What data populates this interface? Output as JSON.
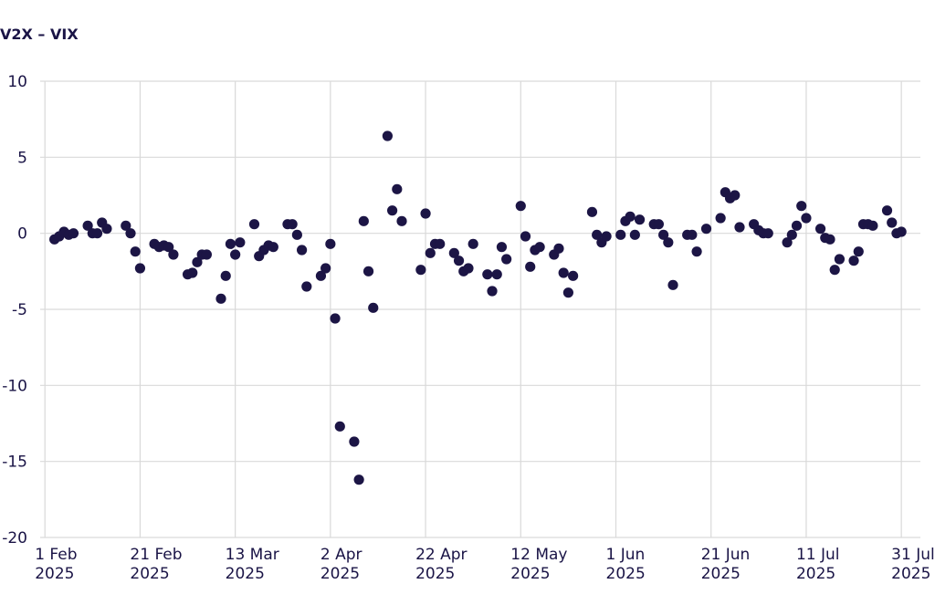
{
  "chart_data": {
    "type": "scatter",
    "title": "V2X – VIX",
    "xlabel": "",
    "ylabel": "",
    "ylim": [
      -20,
      10
    ],
    "xlim": [
      "2025-01-31",
      "2025-08-04"
    ],
    "grid": true,
    "y_ticks": [
      10,
      5,
      0,
      -5,
      -10,
      -15,
      -20
    ],
    "y_tick_labels": [
      "10",
      "5",
      "0",
      "-5",
      "-10",
      "-15",
      "-20"
    ],
    "x_ticks": [
      {
        "date": "2025-02-01",
        "line1": "1 Feb",
        "line2": "2025"
      },
      {
        "date": "2025-02-21",
        "line1": "21 Feb",
        "line2": "2025"
      },
      {
        "date": "2025-03-13",
        "line1": "13 Mar",
        "line2": "2025"
      },
      {
        "date": "2025-04-02",
        "line1": "2 Apr",
        "line2": "2025"
      },
      {
        "date": "2025-04-22",
        "line1": "22 Apr",
        "line2": "2025"
      },
      {
        "date": "2025-05-12",
        "line1": "12 May",
        "line2": "2025"
      },
      {
        "date": "2025-06-01",
        "line1": "1 Jun",
        "line2": "2025"
      },
      {
        "date": "2025-06-21",
        "line1": "21 Jun",
        "line2": "2025"
      },
      {
        "date": "2025-07-11",
        "line1": "11 Jul",
        "line2": "2025"
      },
      {
        "date": "2025-07-31",
        "line1": "31 Jul",
        "line2": "2025"
      }
    ],
    "marker_color": "#1c1545",
    "grid_color": "#d9d9d9",
    "points": [
      {
        "x": "2025-02-03",
        "y": -0.4
      },
      {
        "x": "2025-02-04",
        "y": -0.2
      },
      {
        "x": "2025-02-05",
        "y": 0.1
      },
      {
        "x": "2025-02-06",
        "y": -0.1
      },
      {
        "x": "2025-02-07",
        "y": 0.0
      },
      {
        "x": "2025-02-10",
        "y": 0.5
      },
      {
        "x": "2025-02-11",
        "y": 0.0
      },
      {
        "x": "2025-02-12",
        "y": 0.0
      },
      {
        "x": "2025-02-13",
        "y": 0.7
      },
      {
        "x": "2025-02-14",
        "y": 0.3
      },
      {
        "x": "2025-02-18",
        "y": 0.5
      },
      {
        "x": "2025-02-19",
        "y": 0.0
      },
      {
        "x": "2025-02-20",
        "y": -1.2
      },
      {
        "x": "2025-02-21",
        "y": -2.3
      },
      {
        "x": "2025-02-24",
        "y": -0.7
      },
      {
        "x": "2025-02-25",
        "y": -0.9
      },
      {
        "x": "2025-02-26",
        "y": -0.8
      },
      {
        "x": "2025-02-27",
        "y": -0.9
      },
      {
        "x": "2025-02-28",
        "y": -1.4
      },
      {
        "x": "2025-03-03",
        "y": -2.7
      },
      {
        "x": "2025-03-04",
        "y": -2.6
      },
      {
        "x": "2025-03-05",
        "y": -1.9
      },
      {
        "x": "2025-03-06",
        "y": -1.4
      },
      {
        "x": "2025-03-07",
        "y": -1.4
      },
      {
        "x": "2025-03-10",
        "y": -4.3
      },
      {
        "x": "2025-03-11",
        "y": -2.8
      },
      {
        "x": "2025-03-12",
        "y": -0.7
      },
      {
        "x": "2025-03-13",
        "y": -1.4
      },
      {
        "x": "2025-03-14",
        "y": -0.6
      },
      {
        "x": "2025-03-17",
        "y": 0.6
      },
      {
        "x": "2025-03-18",
        "y": -1.5
      },
      {
        "x": "2025-03-19",
        "y": -1.1
      },
      {
        "x": "2025-03-20",
        "y": -0.8
      },
      {
        "x": "2025-03-21",
        "y": -0.9
      },
      {
        "x": "2025-03-24",
        "y": 0.6
      },
      {
        "x": "2025-03-25",
        "y": 0.6
      },
      {
        "x": "2025-03-26",
        "y": -0.1
      },
      {
        "x": "2025-03-27",
        "y": -1.1
      },
      {
        "x": "2025-03-28",
        "y": -3.5
      },
      {
        "x": "2025-03-31",
        "y": -2.8
      },
      {
        "x": "2025-04-01",
        "y": -2.3
      },
      {
        "x": "2025-04-02",
        "y": -0.7
      },
      {
        "x": "2025-04-03",
        "y": -5.6
      },
      {
        "x": "2025-04-04",
        "y": -12.7
      },
      {
        "x": "2025-04-07",
        "y": -13.7
      },
      {
        "x": "2025-04-08",
        "y": -16.2
      },
      {
        "x": "2025-04-09",
        "y": 0.8
      },
      {
        "x": "2025-04-10",
        "y": -2.5
      },
      {
        "x": "2025-04-11",
        "y": -4.9
      },
      {
        "x": "2025-04-14",
        "y": 6.4
      },
      {
        "x": "2025-04-15",
        "y": 1.5
      },
      {
        "x": "2025-04-16",
        "y": 2.9
      },
      {
        "x": "2025-04-17",
        "y": 0.8
      },
      {
        "x": "2025-04-21",
        "y": -2.4
      },
      {
        "x": "2025-04-22",
        "y": 1.3
      },
      {
        "x": "2025-04-23",
        "y": -1.3
      },
      {
        "x": "2025-04-24",
        "y": -0.7
      },
      {
        "x": "2025-04-25",
        "y": -0.7
      },
      {
        "x": "2025-04-28",
        "y": -1.3
      },
      {
        "x": "2025-04-29",
        "y": -1.8
      },
      {
        "x": "2025-04-30",
        "y": -2.5
      },
      {
        "x": "2025-05-01",
        "y": -2.3
      },
      {
        "x": "2025-05-02",
        "y": -0.7
      },
      {
        "x": "2025-05-05",
        "y": -2.7
      },
      {
        "x": "2025-05-06",
        "y": -3.8
      },
      {
        "x": "2025-05-07",
        "y": -2.7
      },
      {
        "x": "2025-05-08",
        "y": -0.9
      },
      {
        "x": "2025-05-09",
        "y": -1.7
      },
      {
        "x": "2025-05-12",
        "y": 1.8
      },
      {
        "x": "2025-05-13",
        "y": -0.2
      },
      {
        "x": "2025-05-14",
        "y": -2.2
      },
      {
        "x": "2025-05-15",
        "y": -1.1
      },
      {
        "x": "2025-05-16",
        "y": -0.9
      },
      {
        "x": "2025-05-19",
        "y": -1.4
      },
      {
        "x": "2025-05-20",
        "y": -1.0
      },
      {
        "x": "2025-05-21",
        "y": -2.6
      },
      {
        "x": "2025-05-22",
        "y": -3.9
      },
      {
        "x": "2025-05-23",
        "y": -2.8
      },
      {
        "x": "2025-05-27",
        "y": 1.4
      },
      {
        "x": "2025-05-28",
        "y": -0.1
      },
      {
        "x": "2025-05-29",
        "y": -0.6
      },
      {
        "x": "2025-05-30",
        "y": -0.2
      },
      {
        "x": "2025-06-02",
        "y": -0.1
      },
      {
        "x": "2025-06-03",
        "y": 0.8
      },
      {
        "x": "2025-06-04",
        "y": 1.1
      },
      {
        "x": "2025-06-05",
        "y": -0.1
      },
      {
        "x": "2025-06-06",
        "y": 0.9
      },
      {
        "x": "2025-06-09",
        "y": 0.6
      },
      {
        "x": "2025-06-10",
        "y": 0.6
      },
      {
        "x": "2025-06-11",
        "y": -0.1
      },
      {
        "x": "2025-06-12",
        "y": -0.6
      },
      {
        "x": "2025-06-13",
        "y": -3.4
      },
      {
        "x": "2025-06-16",
        "y": -0.1
      },
      {
        "x": "2025-06-17",
        "y": -0.1
      },
      {
        "x": "2025-06-18",
        "y": -1.2
      },
      {
        "x": "2025-06-20",
        "y": 0.3
      },
      {
        "x": "2025-06-23",
        "y": 1.0
      },
      {
        "x": "2025-06-24",
        "y": 2.7
      },
      {
        "x": "2025-06-25",
        "y": 2.3
      },
      {
        "x": "2025-06-26",
        "y": 2.5
      },
      {
        "x": "2025-06-27",
        "y": 0.4
      },
      {
        "x": "2025-06-30",
        "y": 0.6
      },
      {
        "x": "2025-07-01",
        "y": 0.2
      },
      {
        "x": "2025-07-02",
        "y": 0.0
      },
      {
        "x": "2025-07-03",
        "y": 0.0
      },
      {
        "x": "2025-07-07",
        "y": -0.6
      },
      {
        "x": "2025-07-08",
        "y": -0.1
      },
      {
        "x": "2025-07-09",
        "y": 0.5
      },
      {
        "x": "2025-07-10",
        "y": 1.8
      },
      {
        "x": "2025-07-11",
        "y": 1.0
      },
      {
        "x": "2025-07-14",
        "y": 0.3
      },
      {
        "x": "2025-07-15",
        "y": -0.3
      },
      {
        "x": "2025-07-16",
        "y": -0.4
      },
      {
        "x": "2025-07-17",
        "y": -2.4
      },
      {
        "x": "2025-07-18",
        "y": -1.7
      },
      {
        "x": "2025-07-21",
        "y": -1.8
      },
      {
        "x": "2025-07-22",
        "y": -1.2
      },
      {
        "x": "2025-07-23",
        "y": 0.6
      },
      {
        "x": "2025-07-24",
        "y": 0.6
      },
      {
        "x": "2025-07-25",
        "y": 0.5
      },
      {
        "x": "2025-07-28",
        "y": 1.5
      },
      {
        "x": "2025-07-29",
        "y": 0.7
      },
      {
        "x": "2025-07-30",
        "y": 0.0
      },
      {
        "x": "2025-07-31",
        "y": 0.1
      }
    ]
  }
}
